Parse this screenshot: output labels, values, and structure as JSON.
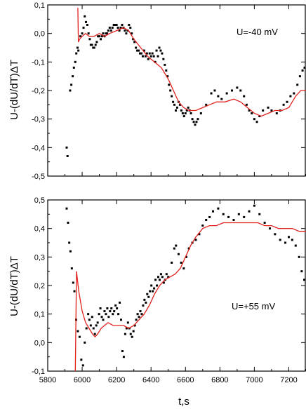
{
  "chart_data": [
    {
      "type": "scatter",
      "ylabel": "U-(dU/dT)ΔT",
      "annotation": "U=-40 mV",
      "xlim": [
        5800,
        7300
      ],
      "ylim": [
        -0.5,
        0.1
      ],
      "yticks": [
        0.1,
        0.0,
        -0.1,
        -0.2,
        -0.3,
        -0.4,
        -0.5
      ],
      "ytick_labels": [
        "0,1",
        "0,0",
        "-0,1",
        "-0,2",
        "-0,3",
        "-0,4",
        "-0,5"
      ],
      "xticks": [
        5800,
        6000,
        6200,
        6400,
        6600,
        6800,
        7000,
        7200
      ],
      "marker_color": "#000000",
      "line_color": "#e0201c",
      "scatter": [
        [
          5910,
          -0.4
        ],
        [
          5915,
          -0.43
        ],
        [
          5930,
          -0.2
        ],
        [
          5937,
          -0.18
        ],
        [
          5945,
          -0.15
        ],
        [
          5952,
          -0.12
        ],
        [
          5960,
          -0.1
        ],
        [
          5966,
          -0.07
        ],
        [
          5973,
          -0.05
        ],
        [
          5978,
          -0.06
        ],
        [
          5990,
          -0.01
        ],
        [
          6000,
          0.0
        ],
        [
          6008,
          0.02
        ],
        [
          6015,
          0.06
        ],
        [
          6022,
          0.04
        ],
        [
          6030,
          0.03
        ],
        [
          6037,
          0.0
        ],
        [
          6044,
          -0.02
        ],
        [
          6050,
          -0.04
        ],
        [
          6057,
          -0.04
        ],
        [
          6064,
          -0.05
        ],
        [
          6070,
          -0.05
        ],
        [
          6078,
          -0.04
        ],
        [
          6085,
          -0.03
        ],
        [
          6092,
          -0.01
        ],
        [
          6100,
          -0.01
        ],
        [
          6108,
          -0.02
        ],
        [
          6115,
          -0.01
        ],
        [
          6122,
          0.0
        ],
        [
          6130,
          -0.01
        ],
        [
          6138,
          0.0
        ],
        [
          6145,
          0.0
        ],
        [
          6152,
          0.01
        ],
        [
          6160,
          0.02
        ],
        [
          6168,
          0.01
        ],
        [
          6176,
          0.02
        ],
        [
          6184,
          0.03
        ],
        [
          6192,
          0.03
        ],
        [
          6200,
          0.03
        ],
        [
          6208,
          0.02
        ],
        [
          6216,
          0.01
        ],
        [
          6224,
          0.02
        ],
        [
          6232,
          0.03
        ],
        [
          6240,
          0.02
        ],
        [
          6248,
          0.01
        ],
        [
          6256,
          0.0
        ],
        [
          6264,
          0.01
        ],
        [
          6272,
          0.03
        ],
        [
          6280,
          0.02
        ],
        [
          6288,
          0.0
        ],
        [
          6296,
          -0.02
        ],
        [
          6304,
          -0.03
        ],
        [
          6312,
          -0.05
        ],
        [
          6320,
          -0.06
        ],
        [
          6328,
          -0.06
        ],
        [
          6336,
          -0.07
        ],
        [
          6344,
          -0.07
        ],
        [
          6352,
          -0.08
        ],
        [
          6360,
          -0.06
        ],
        [
          6368,
          -0.08
        ],
        [
          6376,
          -0.07
        ],
        [
          6384,
          -0.09
        ],
        [
          6392,
          -0.07
        ],
        [
          6400,
          -0.08
        ],
        [
          6408,
          -0.07
        ],
        [
          6416,
          -0.08
        ],
        [
          6424,
          -0.1
        ],
        [
          6432,
          -0.06
        ],
        [
          6440,
          -0.08
        ],
        [
          6448,
          -0.05
        ],
        [
          6456,
          -0.06
        ],
        [
          6464,
          -0.07
        ],
        [
          6472,
          -0.09
        ],
        [
          6480,
          -0.11
        ],
        [
          6488,
          -0.13
        ],
        [
          6496,
          -0.15
        ],
        [
          6504,
          -0.18
        ],
        [
          6512,
          -0.2
        ],
        [
          6520,
          -0.22
        ],
        [
          6528,
          -0.24
        ],
        [
          6536,
          -0.25
        ],
        [
          6544,
          -0.27
        ],
        [
          6552,
          -0.26
        ],
        [
          6560,
          -0.24
        ],
        [
          6568,
          -0.25
        ],
        [
          6576,
          -0.27
        ],
        [
          6584,
          -0.28
        ],
        [
          6592,
          -0.29
        ],
        [
          6600,
          -0.28
        ],
        [
          6608,
          -0.27
        ],
        [
          6616,
          -0.26
        ],
        [
          6624,
          -0.27
        ],
        [
          6632,
          -0.28
        ],
        [
          6640,
          -0.3
        ],
        [
          6648,
          -0.31
        ],
        [
          6656,
          -0.32
        ],
        [
          6664,
          -0.31
        ],
        [
          6672,
          -0.3
        ],
        [
          6690,
          -0.28
        ],
        [
          6720,
          -0.25
        ],
        [
          6750,
          -0.21
        ],
        [
          6770,
          -0.2
        ],
        [
          6790,
          -0.22
        ],
        [
          6810,
          -0.23
        ],
        [
          6840,
          -0.21
        ],
        [
          6870,
          -0.2
        ],
        [
          6900,
          -0.19
        ],
        [
          6920,
          -0.2
        ],
        [
          6940,
          -0.22
        ],
        [
          6955,
          -0.25
        ],
        [
          6970,
          -0.27
        ],
        [
          6985,
          -0.28
        ],
        [
          7000,
          -0.3
        ],
        [
          7015,
          -0.31
        ],
        [
          7030,
          -0.29
        ],
        [
          7050,
          -0.27
        ],
        [
          7080,
          -0.26
        ],
        [
          7100,
          -0.27
        ],
        [
          7130,
          -0.28
        ],
        [
          7150,
          -0.27
        ],
        [
          7170,
          -0.25
        ],
        [
          7190,
          -0.24
        ],
        [
          7210,
          -0.22
        ],
        [
          7230,
          -0.21
        ],
        [
          7250,
          -0.18
        ],
        [
          7265,
          -0.15
        ],
        [
          7280,
          -0.13
        ],
        [
          7292,
          -0.12
        ]
      ],
      "line": [
        [
          5975,
          0.09
        ],
        [
          5978,
          -0.03
        ],
        [
          5985,
          -0.02
        ],
        [
          6000,
          -0.01
        ],
        [
          6020,
          0.0
        ],
        [
          6040,
          -0.01
        ],
        [
          6070,
          -0.01
        ],
        [
          6100,
          0.0
        ],
        [
          6130,
          -0.01
        ],
        [
          6160,
          0.0
        ],
        [
          6200,
          0.01
        ],
        [
          6240,
          0.02
        ],
        [
          6270,
          0.01
        ],
        [
          6300,
          -0.02
        ],
        [
          6340,
          -0.05
        ],
        [
          6380,
          -0.08
        ],
        [
          6420,
          -0.1
        ],
        [
          6460,
          -0.12
        ],
        [
          6500,
          -0.16
        ],
        [
          6530,
          -0.2
        ],
        [
          6560,
          -0.24
        ],
        [
          6590,
          -0.26
        ],
        [
          6620,
          -0.27
        ],
        [
          6660,
          -0.27
        ],
        [
          6700,
          -0.26
        ],
        [
          6740,
          -0.25
        ],
        [
          6780,
          -0.24
        ],
        [
          6830,
          -0.24
        ],
        [
          6880,
          -0.23
        ],
        [
          6920,
          -0.24
        ],
        [
          6960,
          -0.26
        ],
        [
          7000,
          -0.28
        ],
        [
          7040,
          -0.29
        ],
        [
          7080,
          -0.28
        ],
        [
          7120,
          -0.27
        ],
        [
          7160,
          -0.27
        ],
        [
          7200,
          -0.26
        ],
        [
          7240,
          -0.22
        ],
        [
          7270,
          -0.2
        ],
        [
          7300,
          -0.2
        ]
      ]
    },
    {
      "type": "scatter",
      "ylabel": "U-(dU/dT)ΔT",
      "xlabel": "t,s",
      "annotation": "U=+55 mV",
      "xlim": [
        5800,
        7300
      ],
      "ylim": [
        -0.1,
        0.5
      ],
      "yticks": [
        0.5,
        0.4,
        0.3,
        0.2,
        0.1,
        0.0,
        -0.1
      ],
      "ytick_labels": [
        "0,5",
        "0,4",
        "0,3",
        "0,2",
        "0,1",
        "0,0",
        "-0,1"
      ],
      "xticks": [
        5800,
        6000,
        6200,
        6400,
        6600,
        6800,
        7000,
        7200
      ],
      "xtick_labels": [
        "5800",
        "6000",
        "6200",
        "6400",
        "6600",
        "6800",
        "7000",
        "7200"
      ],
      "marker_color": "#000000",
      "line_color": "#e0201c",
      "scatter": [
        [
          5910,
          0.47
        ],
        [
          5918,
          0.42
        ],
        [
          5925,
          0.35
        ],
        [
          5932,
          0.32
        ],
        [
          5940,
          0.26
        ],
        [
          5948,
          0.21
        ],
        [
          5955,
          0.18
        ],
        [
          5965,
          0.08
        ],
        [
          5975,
          0.04
        ],
        [
          5985,
          0.02
        ],
        [
          5995,
          -0.06
        ],
        [
          6005,
          -0.08
        ],
        [
          6015,
          0.0
        ],
        [
          6025,
          0.05
        ],
        [
          6035,
          0.1
        ],
        [
          6042,
          0.08
        ],
        [
          6050,
          0.06
        ],
        [
          6058,
          0.09
        ],
        [
          6066,
          0.05
        ],
        [
          6074,
          0.03
        ],
        [
          6082,
          0.06
        ],
        [
          6090,
          0.07
        ],
        [
          6098,
          0.1
        ],
        [
          6106,
          0.12
        ],
        [
          6114,
          0.09
        ],
        [
          6122,
          0.08
        ],
        [
          6130,
          0.11
        ],
        [
          6138,
          0.1
        ],
        [
          6146,
          0.12
        ],
        [
          6154,
          0.09
        ],
        [
          6162,
          0.11
        ],
        [
          6170,
          0.12
        ],
        [
          6178,
          0.1
        ],
        [
          6186,
          0.11
        ],
        [
          6194,
          0.13
        ],
        [
          6202,
          0.12
        ],
        [
          6210,
          0.1
        ],
        [
          6218,
          0.14
        ],
        [
          6226,
          0.08
        ],
        [
          6234,
          -0.03
        ],
        [
          6242,
          -0.05
        ],
        [
          6250,
          0.03
        ],
        [
          6258,
          0.05
        ],
        [
          6266,
          0.07
        ],
        [
          6274,
          0.05
        ],
        [
          6282,
          0.03
        ],
        [
          6290,
          0.02
        ],
        [
          6298,
          0.04
        ],
        [
          6306,
          0.06
        ],
        [
          6314,
          0.08
        ],
        [
          6322,
          0.1
        ],
        [
          6330,
          0.09
        ],
        [
          6338,
          0.11
        ],
        [
          6346,
          0.1
        ],
        [
          6354,
          0.13
        ],
        [
          6362,
          0.15
        ],
        [
          6370,
          0.14
        ],
        [
          6378,
          0.17
        ],
        [
          6386,
          0.16
        ],
        [
          6394,
          0.18
        ],
        [
          6402,
          0.2
        ],
        [
          6410,
          0.18
        ],
        [
          6418,
          0.19
        ],
        [
          6426,
          0.22
        ],
        [
          6434,
          0.2
        ],
        [
          6442,
          0.23
        ],
        [
          6450,
          0.22
        ],
        [
          6458,
          0.24
        ],
        [
          6466,
          0.23
        ],
        [
          6474,
          0.21
        ],
        [
          6482,
          0.22
        ],
        [
          6490,
          0.24
        ],
        [
          6500,
          0.23
        ],
        [
          6520,
          0.28
        ],
        [
          6535,
          0.33
        ],
        [
          6545,
          0.34
        ],
        [
          6560,
          0.31
        ],
        [
          6575,
          0.28
        ],
        [
          6590,
          0.26
        ],
        [
          6605,
          0.3
        ],
        [
          6620,
          0.33
        ],
        [
          6640,
          0.35
        ],
        [
          6660,
          0.36
        ],
        [
          6680,
          0.38
        ],
        [
          6700,
          0.41
        ],
        [
          6720,
          0.43
        ],
        [
          6740,
          0.44
        ],
        [
          6760,
          0.46
        ],
        [
          6790,
          0.47
        ],
        [
          6820,
          0.45
        ],
        [
          6850,
          0.44
        ],
        [
          6880,
          0.43
        ],
        [
          6910,
          0.45
        ],
        [
          6940,
          0.44
        ],
        [
          6970,
          0.46
        ],
        [
          7000,
          0.48
        ],
        [
          7030,
          0.45
        ],
        [
          7060,
          0.42
        ],
        [
          7090,
          0.4
        ],
        [
          7120,
          0.38
        ],
        [
          7150,
          0.36
        ],
        [
          7180,
          0.35
        ],
        [
          7200,
          0.37
        ],
        [
          7220,
          0.36
        ],
        [
          7240,
          0.34
        ],
        [
          7260,
          0.3
        ],
        [
          7275,
          0.25
        ],
        [
          7290,
          0.22
        ]
      ],
      "line": [
        [
          5960,
          -0.1
        ],
        [
          5967,
          0.25
        ],
        [
          5980,
          0.18
        ],
        [
          6000,
          0.11
        ],
        [
          6020,
          0.07
        ],
        [
          6040,
          0.05
        ],
        [
          6060,
          0.03
        ],
        [
          6075,
          0.02
        ],
        [
          6090,
          0.03
        ],
        [
          6110,
          0.05
        ],
        [
          6130,
          0.06
        ],
        [
          6150,
          0.07
        ],
        [
          6180,
          0.06
        ],
        [
          6210,
          0.06
        ],
        [
          6240,
          0.06
        ],
        [
          6270,
          0.05
        ],
        [
          6300,
          0.06
        ],
        [
          6330,
          0.08
        ],
        [
          6360,
          0.1
        ],
        [
          6390,
          0.13
        ],
        [
          6420,
          0.17
        ],
        [
          6450,
          0.2
        ],
        [
          6480,
          0.22
        ],
        [
          6510,
          0.23
        ],
        [
          6540,
          0.24
        ],
        [
          6570,
          0.26
        ],
        [
          6600,
          0.3
        ],
        [
          6630,
          0.34
        ],
        [
          6660,
          0.37
        ],
        [
          6700,
          0.4
        ],
        [
          6740,
          0.41
        ],
        [
          6780,
          0.41
        ],
        [
          6820,
          0.42
        ],
        [
          6860,
          0.42
        ],
        [
          6900,
          0.42
        ],
        [
          6940,
          0.42
        ],
        [
          6980,
          0.42
        ],
        [
          7020,
          0.42
        ],
        [
          7060,
          0.41
        ],
        [
          7100,
          0.41
        ],
        [
          7140,
          0.4
        ],
        [
          7180,
          0.4
        ],
        [
          7220,
          0.4
        ],
        [
          7260,
          0.39
        ],
        [
          7300,
          0.39
        ]
      ]
    }
  ]
}
